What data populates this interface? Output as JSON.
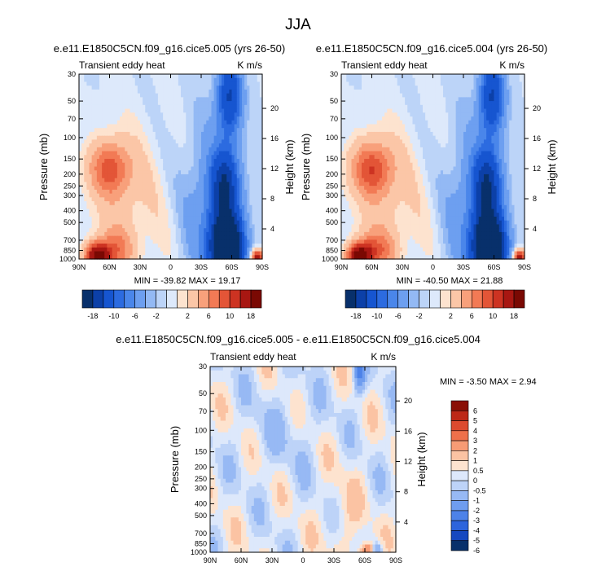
{
  "figure_title": "JJA",
  "colors": {
    "levels_main": [
      "#08306b",
      "#0c40a8",
      "#1655d0",
      "#2c6be0",
      "#4a86ea",
      "#6d9ff0",
      "#93b9f4",
      "#bcd4f8",
      "#dde9fb",
      "#fde3cf",
      "#fbc6a7",
      "#f8a07b",
      "#f27a55",
      "#e35537",
      "#cd3322",
      "#a81712",
      "#7a0903"
    ],
    "levels_diff": [
      "#08306b",
      "#1648c0",
      "#2d64dc",
      "#4d82e8",
      "#6f9def",
      "#97b9f4",
      "#bdd3f8",
      "#dde8fb",
      "#fde3cf",
      "#fbc3a3",
      "#f79b75",
      "#ee704b",
      "#dc4a2f",
      "#bd2817",
      "#8a0f06"
    ]
  },
  "chart_data": [
    {
      "type": "heatmap",
      "title": "e.e11.E1850C5CN.f09_g16.cice5.005 (yrs 26-50)",
      "left_label": "Transient eddy heat",
      "right_label": "K m/s",
      "ylabel": "Pressure (mb)",
      "ylabel_right": "Height (km)",
      "x_ticks": [
        "90N",
        "60N",
        "30N",
        "0",
        "30S",
        "60S",
        "90S"
      ],
      "y_ticks": [
        "30",
        "50",
        "70",
        "100",
        "150",
        "200",
        "250",
        "300",
        "400",
        "500",
        "700",
        "850",
        "1000"
      ],
      "height_ticks": [
        "20",
        "16",
        "12",
        "8",
        "4"
      ],
      "min_max": "MIN = -39.82  MAX = 19.17",
      "colorbar_labels": [
        "-18",
        "-10",
        "-6",
        "-2",
        "2",
        "6",
        "10",
        "18"
      ],
      "ylim": [
        1000,
        30
      ]
    },
    {
      "type": "heatmap",
      "title": "e.e11.E1850C5CN.f09_g16.cice5.004 (yrs 26-50)",
      "left_label": "Transient eddy heat",
      "right_label": "K m/s",
      "ylabel": "Pressure (mb)",
      "ylabel_right": "Height (km)",
      "x_ticks": [
        "90N",
        "60N",
        "30N",
        "0",
        "30S",
        "60S",
        "90S"
      ],
      "y_ticks": [
        "30",
        "50",
        "70",
        "100",
        "150",
        "200",
        "250",
        "300",
        "400",
        "500",
        "700",
        "850",
        "1000"
      ],
      "height_ticks": [
        "20",
        "16",
        "12",
        "8",
        "4"
      ],
      "min_max": "MIN = -40.50  MAX = 21.88",
      "colorbar_labels": [
        "-18",
        "-10",
        "-6",
        "-2",
        "2",
        "6",
        "10",
        "18"
      ],
      "ylim": [
        1000,
        30
      ]
    },
    {
      "type": "heatmap",
      "title": "e.e11.E1850C5CN.f09_g16.cice5.005 - e.e11.E1850C5CN.f09_g16.cice5.004",
      "left_label": "Transient eddy heat",
      "right_label": "K m/s",
      "ylabel": "Pressure (mb)",
      "ylabel_right": "Height (km)",
      "x_ticks": [
        "90N",
        "60N",
        "30N",
        "0",
        "30S",
        "60S",
        "90S"
      ],
      "y_ticks": [
        "30",
        "50",
        "70",
        "100",
        "150",
        "200",
        "250",
        "300",
        "400",
        "500",
        "700",
        "850",
        "1000"
      ],
      "height_ticks": [
        "20",
        "16",
        "12",
        "8",
        "4"
      ],
      "min_max": "MIN = -3.50  MAX =  2.94",
      "colorbar_labels": [
        "6",
        "5",
        "4",
        "3",
        "2",
        "1",
        "0.5",
        "0",
        "-0.5",
        "-1",
        "-2",
        "-3",
        "-4",
        "-5",
        "-6"
      ],
      "ylim": [
        1000,
        30
      ]
    }
  ]
}
